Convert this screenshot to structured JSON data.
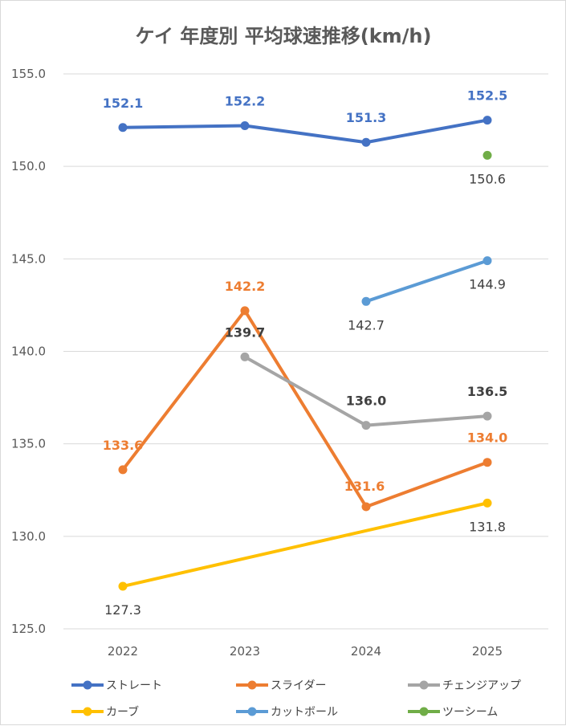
{
  "chart_data": {
    "type": "line",
    "title": "ケイ 年度別 平均球速推移(km/h)",
    "xlabel": "",
    "ylabel": "",
    "categories": [
      "2022",
      "2023",
      "2024",
      "2025"
    ],
    "ylim": [
      125.0,
      155.0
    ],
    "yticks": [
      "125.0",
      "130.0",
      "135.0",
      "140.0",
      "145.0",
      "150.0",
      "155.0"
    ],
    "grid": true,
    "legend_position": "bottom",
    "series": [
      {
        "name": "ストレート",
        "color": "#4472C4",
        "values": [
          152.1,
          152.2,
          151.3,
          152.5
        ],
        "labels": [
          "152.1",
          "152.2",
          "151.3",
          "152.5"
        ],
        "label_color": "#4472C4"
      },
      {
        "name": "スライダー",
        "color": "#ED7D31",
        "values": [
          133.6,
          142.2,
          131.6,
          134.0
        ],
        "labels": [
          "133.6",
          "142.2",
          "131.6",
          "134.0"
        ],
        "label_color": "#ED7D31"
      },
      {
        "name": "チェンジアップ",
        "color": "#A5A5A5",
        "values": [
          null,
          139.7,
          136.0,
          136.5
        ],
        "labels": [
          "",
          "139.7",
          "136.0",
          "136.5"
        ],
        "label_color": "#404040"
      },
      {
        "name": "カーブ",
        "color": "#FFC000",
        "values": [
          127.3,
          null,
          null,
          131.8
        ],
        "labels": [
          "127.3",
          "",
          "",
          "131.8"
        ],
        "label_color": "#404040"
      },
      {
        "name": "カットボール",
        "color": "#5B9BD5",
        "values": [
          null,
          null,
          142.7,
          144.9
        ],
        "labels": [
          "",
          "",
          "142.7",
          "144.9"
        ],
        "label_color": "#404040"
      },
      {
        "name": "ツーシーム",
        "color": "#70AD47",
        "values": [
          null,
          null,
          null,
          150.6
        ],
        "labels": [
          "",
          "",
          "",
          "150.6"
        ],
        "label_color": "#404040"
      }
    ]
  }
}
